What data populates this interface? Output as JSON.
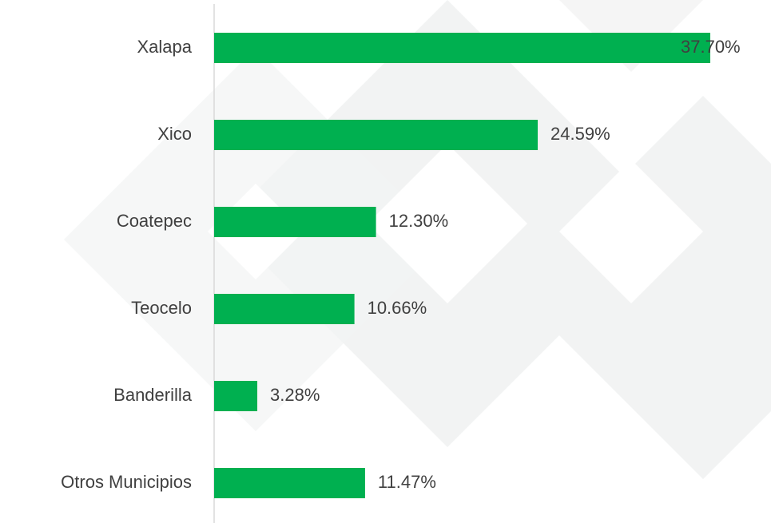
{
  "chart_data": {
    "type": "bar",
    "orientation": "horizontal",
    "categories": [
      "Xalapa",
      "Xico",
      "Coatepec",
      "Teocelo",
      "Banderilla",
      "Otros Municipios"
    ],
    "values": [
      37.7,
      24.59,
      12.3,
      10.66,
      3.28,
      11.47
    ],
    "value_labels": [
      "37.70%",
      "24.59%",
      "12.30%",
      "10.66%",
      "3.28%",
      "11.47%"
    ],
    "color": "#00b050"
  }
}
